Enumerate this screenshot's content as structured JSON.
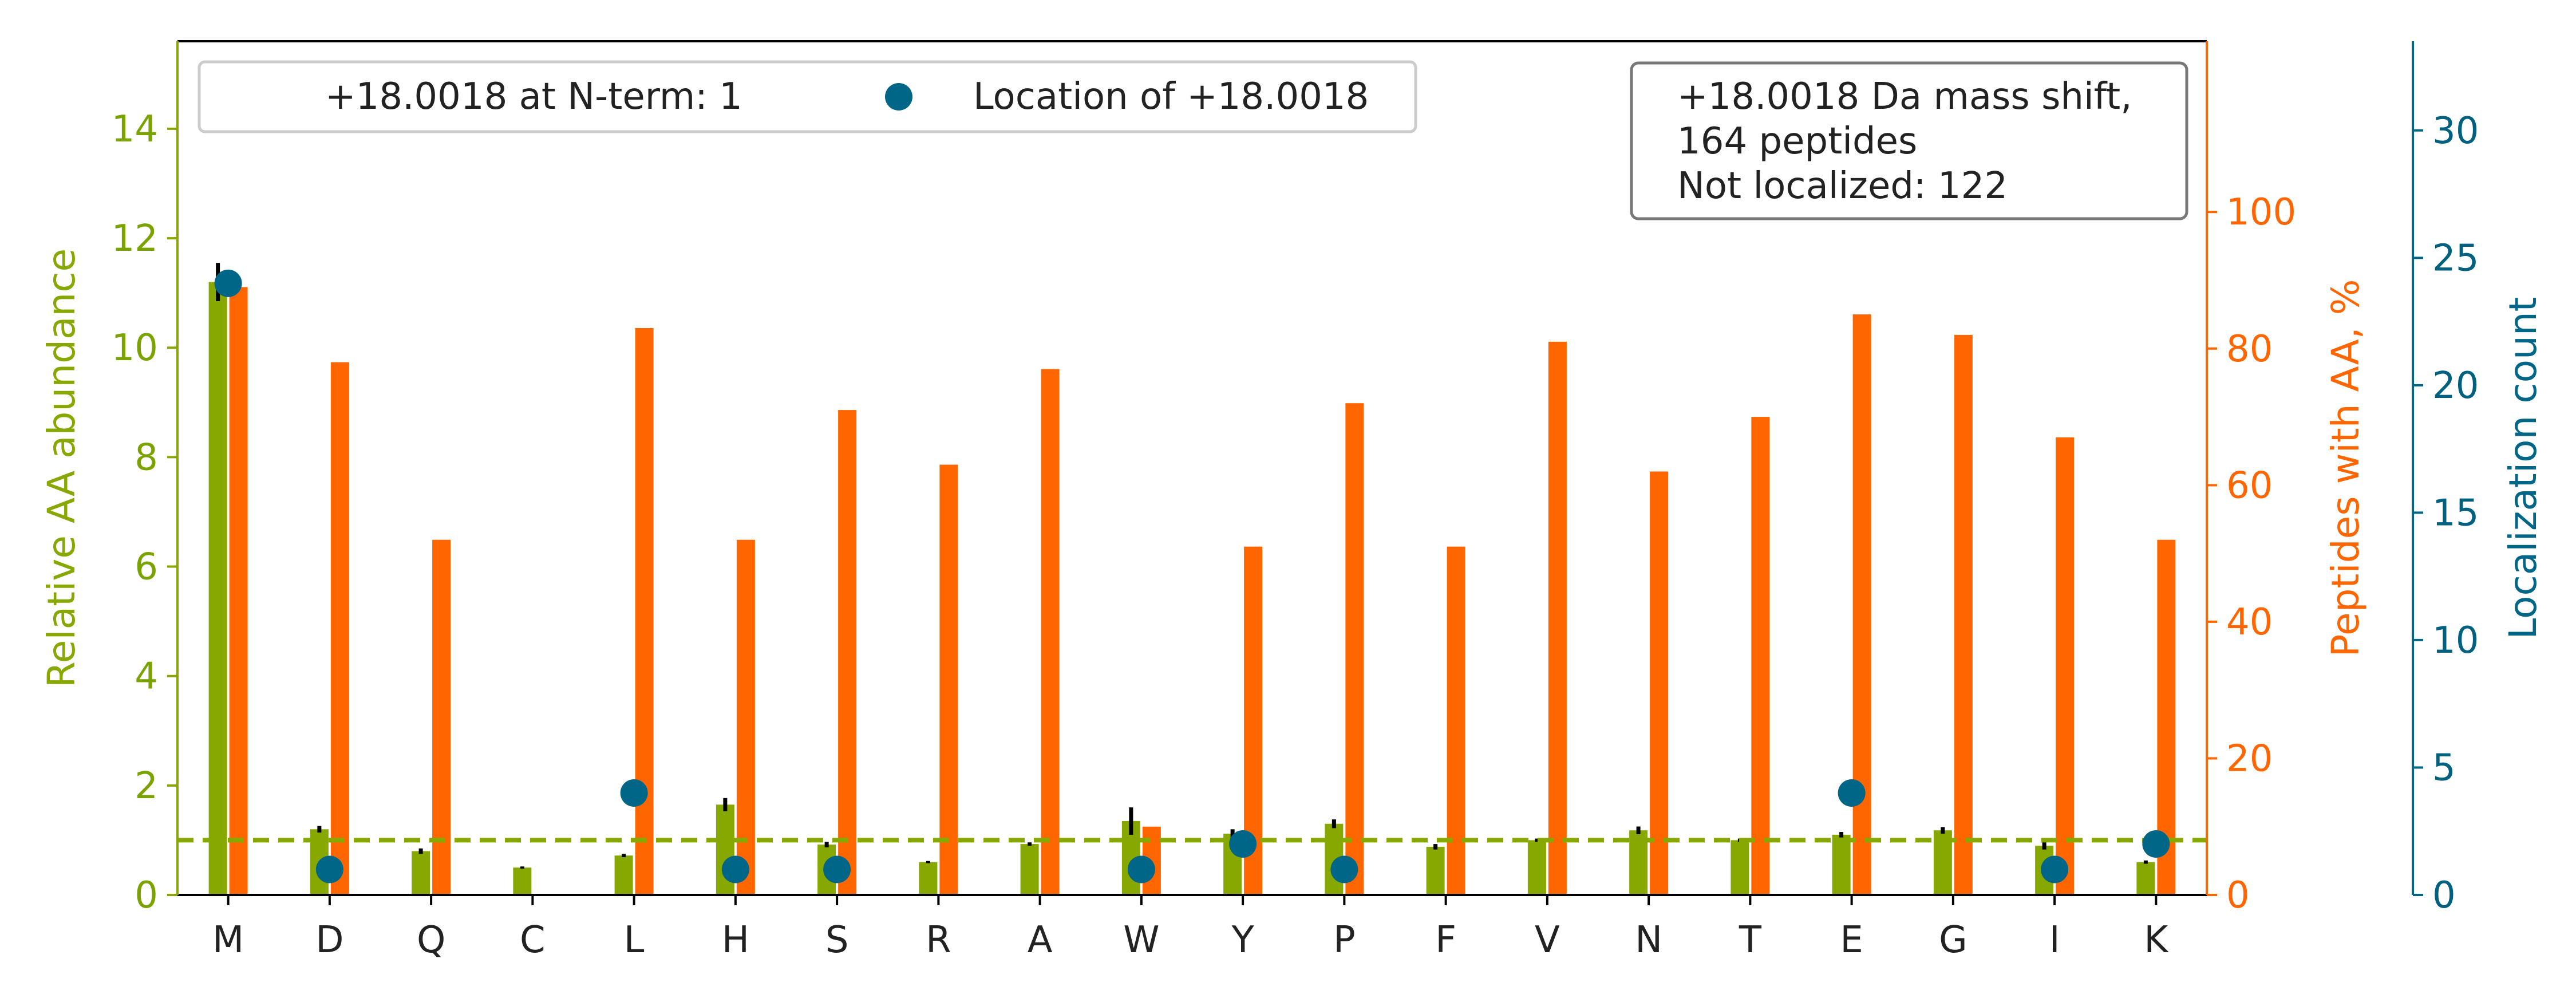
{
  "chart_data": {
    "type": "bar",
    "categories": [
      "M",
      "D",
      "Q",
      "C",
      "L",
      "H",
      "S",
      "R",
      "A",
      "W",
      "Y",
      "P",
      "F",
      "V",
      "N",
      "T",
      "E",
      "G",
      "I",
      "K"
    ],
    "series": [
      {
        "name": "Relative AA abundance",
        "axis": "left",
        "color": "#86a800",
        "values": [
          11.2,
          1.2,
          0.8,
          0.5,
          0.72,
          1.65,
          0.92,
          0.6,
          0.93,
          1.35,
          1.12,
          1.3,
          0.88,
          1.0,
          1.18,
          1.0,
          1.1,
          1.18,
          0.9,
          0.6
        ],
        "errors": [
          0.35,
          0.06,
          0.05,
          0.02,
          0.03,
          0.12,
          0.05,
          0.02,
          0.03,
          0.25,
          0.08,
          0.08,
          0.05,
          0.03,
          0.07,
          0.03,
          0.05,
          0.06,
          0.07,
          0.03
        ]
      },
      {
        "name": "Peptides with AA, %",
        "axis": "right",
        "color": "#ff6600",
        "values": [
          89,
          78,
          52,
          0,
          83,
          52,
          71,
          63,
          77,
          10,
          51,
          72,
          51,
          81,
          62,
          70,
          85,
          82,
          67,
          52
        ]
      }
    ],
    "localization": {
      "name": "Location of +18.0018",
      "axis": "far-right",
      "color": "#006687",
      "values": [
        24,
        1,
        0,
        0,
        4,
        1,
        1,
        0,
        0,
        1,
        2,
        1,
        0,
        0,
        0,
        0,
        4,
        0,
        1,
        2
      ]
    },
    "reference_line": {
      "value": 1,
      "style": "dashed",
      "color": "#86a800"
    },
    "y1": {
      "label": "Relative AA abundance",
      "ylim": [
        0,
        15.6
      ],
      "ticks": [
        0,
        2,
        4,
        6,
        8,
        10,
        12,
        14
      ],
      "color": "#86a800"
    },
    "y2": {
      "label": "Peptides with AA, %",
      "ylim": [
        0,
        125
      ],
      "ticks": [
        0,
        20,
        40,
        60,
        80,
        100
      ],
      "color": "#ff6600"
    },
    "y3": {
      "label": "Localization count",
      "ylim": [
        0,
        33.5
      ],
      "ticks": [
        0,
        5,
        10,
        15,
        20,
        25,
        30
      ],
      "color": "#006687"
    },
    "legend": {
      "nterm_text": "+18.0018 at N-term: 1",
      "marker_text": "Location of +18.0018",
      "placement": "top-left"
    },
    "info_box": {
      "lines": [
        "+18.0018 Da mass shift,",
        "164 peptides",
        "Not localized: 122"
      ],
      "placement": "top-right"
    }
  }
}
